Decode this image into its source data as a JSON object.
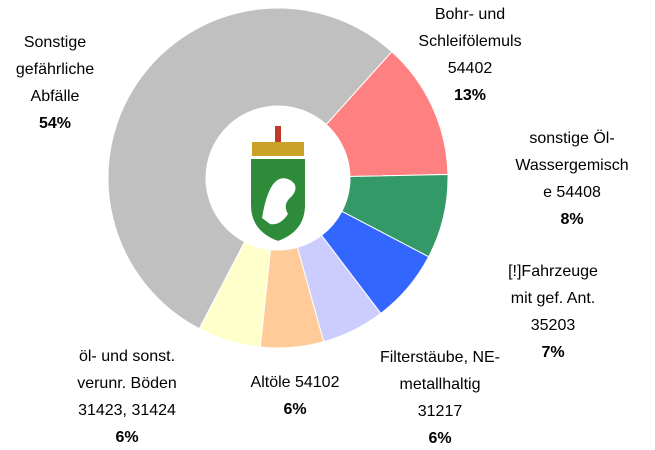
{
  "chart_data": {
    "type": "donut",
    "categories": [
      [
        "Bohr- und",
        "Schleifölemuls",
        "54402"
      ],
      [
        "sonstige Öl-",
        "Wassergemisch",
        "e 54408"
      ],
      [
        "[!]Fahrzeuge",
        "mit gef. Ant.",
        "35203"
      ],
      [
        "Filterstäube, NE-",
        "metallhaltig",
        "31217"
      ],
      [
        "Altöle 54102"
      ],
      [
        "öl- und sonst.",
        "verunr. Böden",
        "31423, 31424"
      ],
      [
        "Sonstige",
        "gefährliche",
        "Abfälle"
      ]
    ],
    "values": [
      13,
      8,
      7,
      6,
      6,
      6,
      54
    ],
    "value_labels": [
      "13%",
      "8%",
      "7%",
      "6%",
      "6%",
      "6%",
      "54%"
    ],
    "colors": [
      "#ff8080",
      "#339966",
      "#3366ff",
      "#ccccff",
      "#ffcc99",
      "#ffffcc",
      "#c0c0c0"
    ]
  }
}
